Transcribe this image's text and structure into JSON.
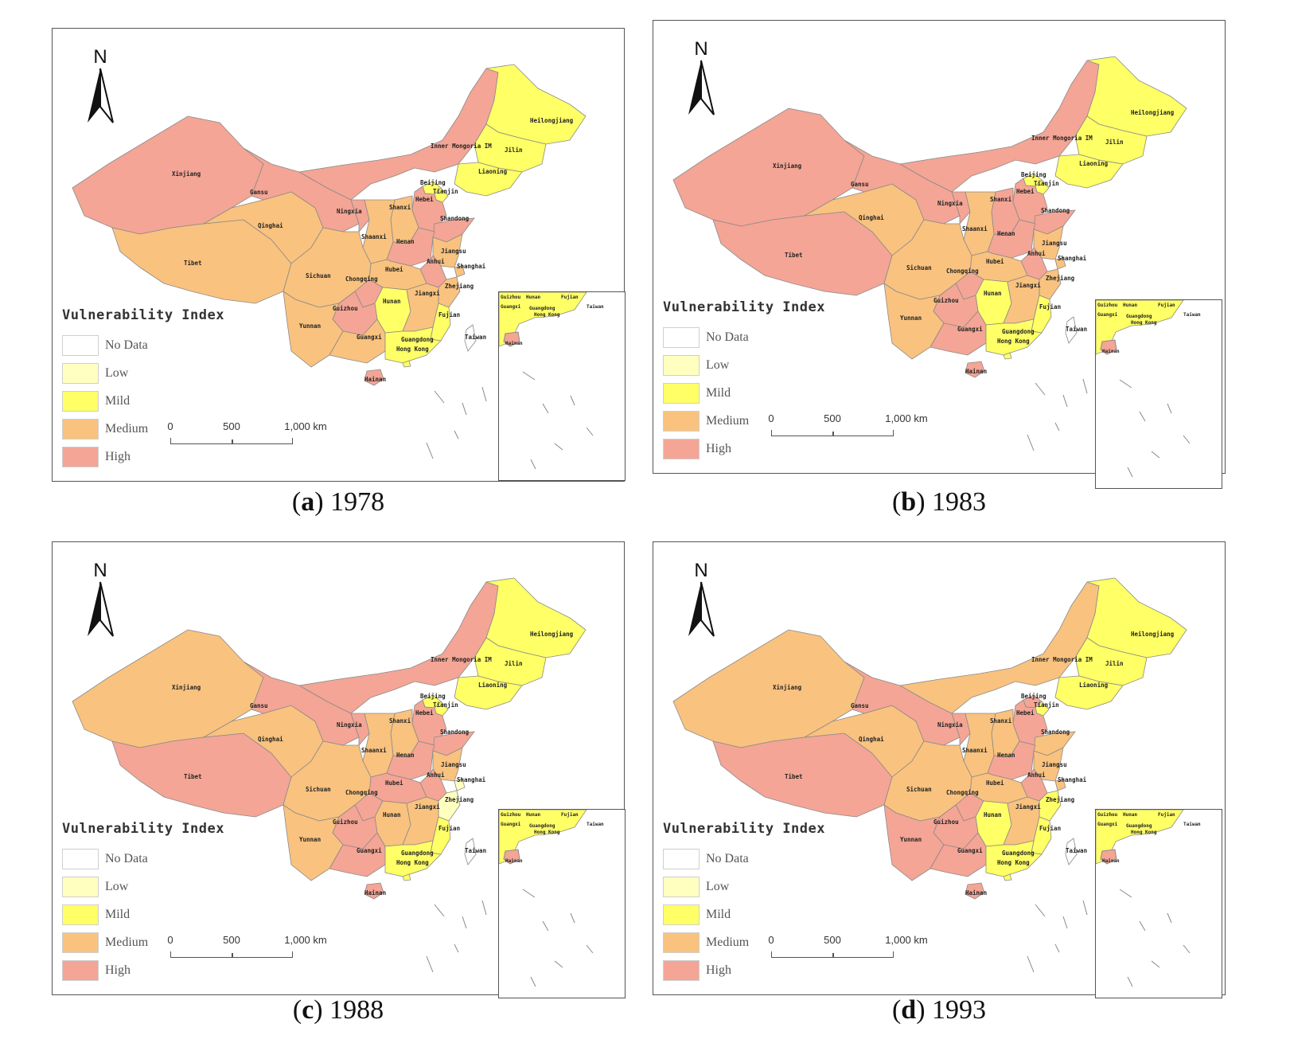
{
  "legend": {
    "title": "Vulnerability Index",
    "items": [
      {
        "label": "No Data",
        "color": "#ffffff"
      },
      {
        "label": "Low",
        "color": "#ffffc0"
      },
      {
        "label": "Mild",
        "color": "#ffff66"
      },
      {
        "label": "Medium",
        "color": "#f9c27e"
      },
      {
        "label": "High",
        "color": "#f4a595"
      }
    ]
  },
  "north_label": "N",
  "scale": {
    "labels": [
      "0",
      "500",
      "1,000 km"
    ]
  },
  "inset_labels": [
    "Guizhou",
    "Hunan",
    "Fujian",
    "Guangxi",
    "Guangdong",
    "Hong Kong",
    "Taiwan",
    "Hainan"
  ],
  "provinces": [
    "Xinjiang",
    "Tibet",
    "Qinghai",
    "Gansu",
    "Inner Mongoria IM",
    "Heilongjiang",
    "Jilin",
    "Liaoning",
    "Beijing",
    "Tianjin",
    "Hebei",
    "Shanxi",
    "Shandong",
    "Ningxia",
    "Shaanxi",
    "Henan",
    "Jiangsu",
    "Anhui",
    "Shanghai",
    "Hubei",
    "Sichuan",
    "Chongqing",
    "Zhejiang",
    "Hunan",
    "Jiangxi",
    "Guizhou",
    "Yunnan",
    "Fujian",
    "Guangxi",
    "Guangdong",
    "Hong Kong",
    "Taiwan",
    "Hainan"
  ],
  "panels": [
    {
      "letter": "a",
      "year": "1978",
      "classes": {
        "Xinjiang": "High",
        "Tibet": "Medium",
        "Qinghai": "Medium",
        "Gansu": "High",
        "Inner Mongoria IM": "High",
        "Heilongjiang": "Mild",
        "Jilin": "Mild",
        "Liaoning": "Mild",
        "Beijing": "Mild",
        "Tianjin": "Mild",
        "Hebei": "High",
        "Shanxi": "Medium",
        "Shandong": "High",
        "Ningxia": "High",
        "Shaanxi": "Medium",
        "Henan": "High",
        "Jiangsu": "Medium",
        "Anhui": "High",
        "Shanghai": "Medium",
        "Hubei": "Medium",
        "Sichuan": "Medium",
        "Chongqing": "High",
        "Zhejiang": "Medium",
        "Hunan": "Mild",
        "Jiangxi": "Medium",
        "Guizhou": "High",
        "Yunnan": "Medium",
        "Fujian": "Mild",
        "Guangxi": "Medium",
        "Guangdong": "Mild",
        "Hong Kong": "Mild",
        "Taiwan": "No Data",
        "Hainan": "High"
      }
    },
    {
      "letter": "b",
      "year": "1983",
      "classes": {
        "Xinjiang": "High",
        "Tibet": "High",
        "Qinghai": "Medium",
        "Gansu": "High",
        "Inner Mongoria IM": "High",
        "Heilongjiang": "Mild",
        "Jilin": "Mild",
        "Liaoning": "Mild",
        "Beijing": "Mild",
        "Tianjin": "Mild",
        "Hebei": "High",
        "Shanxi": "High",
        "Shandong": "High",
        "Ningxia": "High",
        "Shaanxi": "Medium",
        "Henan": "High",
        "Jiangsu": "Medium",
        "Anhui": "High",
        "Shanghai": "Medium",
        "Hubei": "Medium",
        "Sichuan": "Medium",
        "Chongqing": "High",
        "Zhejiang": "Medium",
        "Hunan": "Mild",
        "Jiangxi": "Medium",
        "Guizhou": "High",
        "Yunnan": "Medium",
        "Fujian": "Mild",
        "Guangxi": "High",
        "Guangdong": "Mild",
        "Hong Kong": "Mild",
        "Taiwan": "No Data",
        "Hainan": "High"
      }
    },
    {
      "letter": "c",
      "year": "1988",
      "classes": {
        "Xinjiang": "Medium",
        "Tibet": "High",
        "Qinghai": "Medium",
        "Gansu": "High",
        "Inner Mongoria IM": "High",
        "Heilongjiang": "Mild",
        "Jilin": "Mild",
        "Liaoning": "Mild",
        "Beijing": "Mild",
        "Tianjin": "Mild",
        "Hebei": "High",
        "Shanxi": "Medium",
        "Shandong": "High",
        "Ningxia": "High",
        "Shaanxi": "Medium",
        "Henan": "High",
        "Jiangsu": "Medium",
        "Anhui": "High",
        "Shanghai": "Low",
        "Hubei": "High",
        "Sichuan": "Medium",
        "Chongqing": "High",
        "Zhejiang": "Low",
        "Hunan": "Medium",
        "Jiangxi": "Medium",
        "Guizhou": "High",
        "Yunnan": "Medium",
        "Fujian": "Mild",
        "Guangxi": "High",
        "Guangdong": "Mild",
        "Hong Kong": "Mild",
        "Taiwan": "No Data",
        "Hainan": "High"
      }
    },
    {
      "letter": "d",
      "year": "1993",
      "classes": {
        "Xinjiang": "Medium",
        "Tibet": "High",
        "Qinghai": "Medium",
        "Gansu": "High",
        "Inner Mongoria IM": "Medium",
        "Heilongjiang": "Mild",
        "Jilin": "Mild",
        "Liaoning": "Mild",
        "Beijing": "High",
        "Tianjin": "Mild",
        "Hebei": "High",
        "Shanxi": "Medium",
        "Shandong": "Medium",
        "Ningxia": "High",
        "Shaanxi": "Medium",
        "Henan": "High",
        "Jiangsu": "Medium",
        "Anhui": "High",
        "Shanghai": "Medium",
        "Hubei": "Medium",
        "Sichuan": "Medium",
        "Chongqing": "High",
        "Zhejiang": "Mild",
        "Hunan": "Mild",
        "Jiangxi": "Medium",
        "Guizhou": "High",
        "Yunnan": "High",
        "Fujian": "Mild",
        "Guangxi": "High",
        "Guangdong": "Mild",
        "Hong Kong": "Mild",
        "Taiwan": "No Data",
        "Hainan": "High"
      }
    }
  ]
}
